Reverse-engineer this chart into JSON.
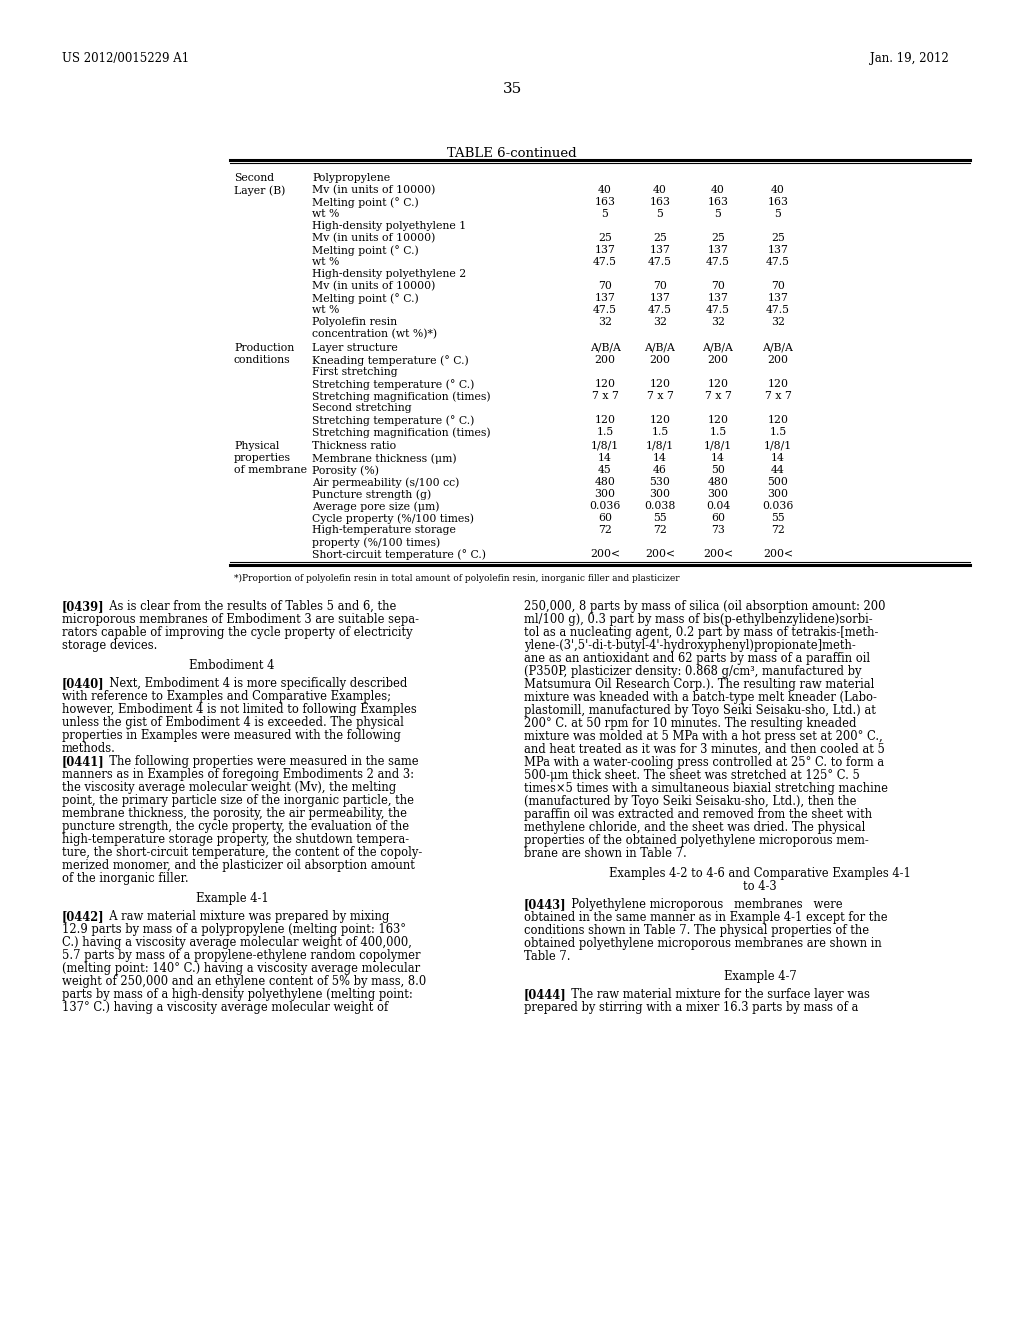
{
  "header_left": "US 2012/0015229 A1",
  "header_right": "Jan. 19, 2012",
  "page_number": "35",
  "table_title": "TABLE 6-continued",
  "footnote": "*)Proportion of polyolefin resin in total amount of polyolefin resin, inorganic filler and plasticizer",
  "background_color": "#ffffff",
  "text_color": "#000000"
}
